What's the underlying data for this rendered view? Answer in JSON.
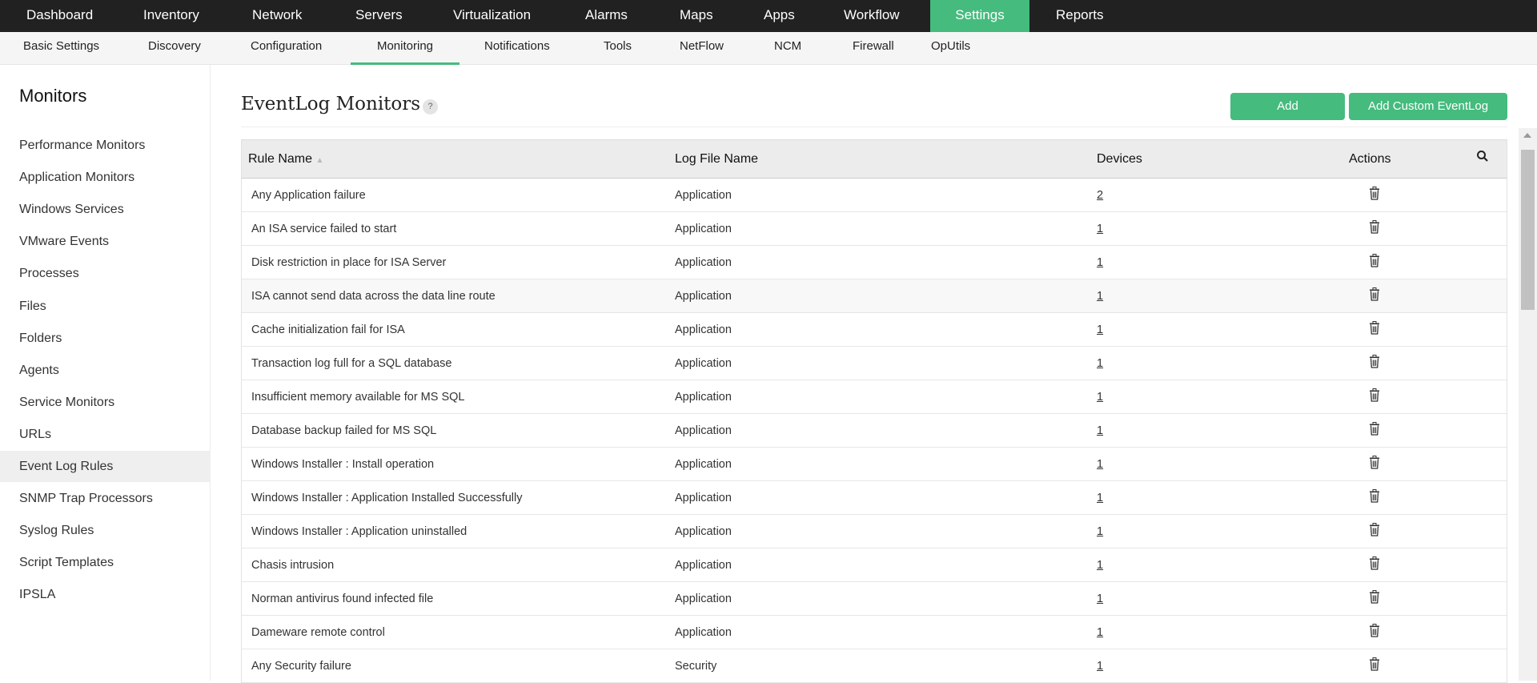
{
  "topnav": [
    "Dashboard",
    "Inventory",
    "Network",
    "Servers",
    "Virtualization",
    "Alarms",
    "Maps",
    "Apps",
    "Workflow",
    "Settings",
    "Reports"
  ],
  "topnav_active": "Settings",
  "subnav": [
    "Basic Settings",
    "Discovery",
    "Configuration",
    "Monitoring",
    "Notifications",
    "Tools",
    "NetFlow",
    "NCM",
    "Firewall",
    "OpUtils"
  ],
  "subnav_active": "Monitoring",
  "sidebar": {
    "title": "Monitors",
    "items": [
      "Performance Monitors",
      "Application Monitors",
      "Windows Services",
      "VMware Events",
      "Processes",
      "Files",
      "Folders",
      "Agents",
      "Service Monitors",
      "URLs",
      "Event Log Rules",
      "SNMP Trap Processors",
      "Syslog Rules",
      "Script Templates",
      "IPSLA"
    ],
    "active": "Event Log Rules"
  },
  "main": {
    "title": "EventLog Monitors",
    "help": "?",
    "add_label": "Add",
    "add_custom_label": "Add Custom EventLog"
  },
  "table": {
    "columns": [
      "Rule Name",
      "Log File Name",
      "Devices",
      "Actions"
    ],
    "rows": [
      [
        "Any Application failure",
        "Application",
        "2"
      ],
      [
        "An ISA service failed to start",
        "Application",
        "1"
      ],
      [
        "Disk restriction in place for ISA Server",
        "Application",
        "1"
      ],
      [
        "ISA cannot send data across the data line route",
        "Application",
        "1"
      ],
      [
        "Cache initialization fail for ISA",
        "Application",
        "1"
      ],
      [
        "Transaction log full for a SQL database",
        "Application",
        "1"
      ],
      [
        "Insufficient memory available for MS SQL",
        "Application",
        "1"
      ],
      [
        "Database backup failed for MS SQL",
        "Application",
        "1"
      ],
      [
        "Windows Installer : Install operation",
        "Application",
        "1"
      ],
      [
        "Windows Installer : Application Installed Successfully",
        "Application",
        "1"
      ],
      [
        "Windows Installer : Application uninstalled",
        "Application",
        "1"
      ],
      [
        "Chasis intrusion",
        "Application",
        "1"
      ],
      [
        "Norman antivirus found infected file",
        "Application",
        "1"
      ],
      [
        "Dameware remote control",
        "Application",
        "1"
      ],
      [
        "Any Security failure",
        "Security",
        "1"
      ]
    ]
  },
  "colors": {
    "accent": "#45bb7d",
    "topbar": "#212121"
  }
}
